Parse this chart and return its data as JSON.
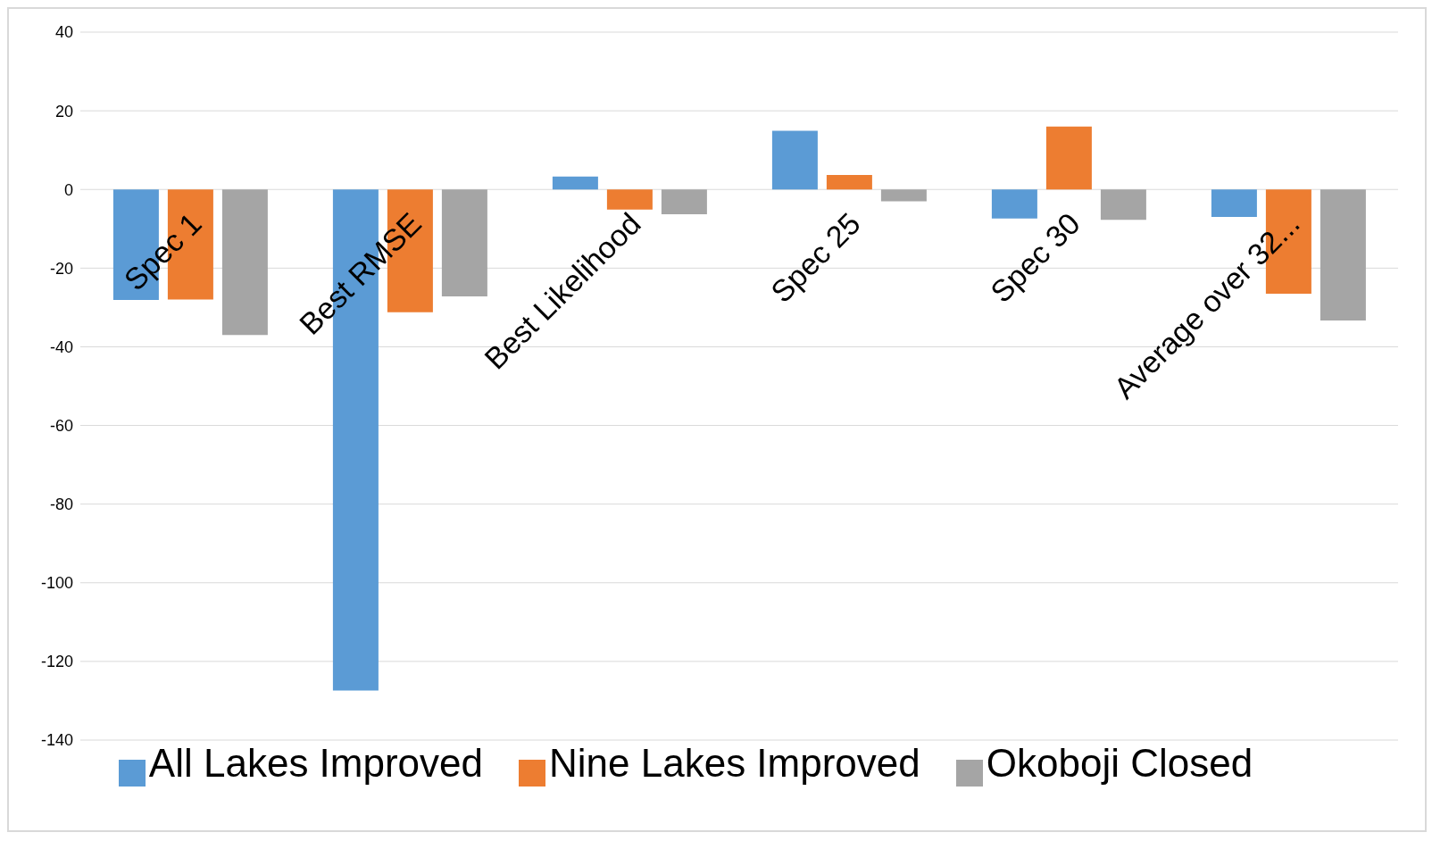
{
  "chart_data": {
    "type": "bar",
    "categories": [
      "Spec 1",
      "Best RMSE",
      "Best Likelihood",
      "Spec 25",
      "Spec 30",
      "Average over 32..."
    ],
    "series": [
      {
        "name": "All Lakes Improved",
        "color": "#5b9bd5",
        "values": [
          -28.1,
          -127.4,
          3.3,
          14.9,
          -7.4,
          -7
        ]
      },
      {
        "name": "Nine Lakes Improved",
        "color": "#ed7d31",
        "values": [
          -28,
          -31.2,
          -5.1,
          3.7,
          16,
          -26.5
        ]
      },
      {
        "name": "Okoboji Closed",
        "color": "#a5a5a5",
        "values": [
          -37,
          -27.2,
          -6.3,
          -3,
          -7.7,
          -33.3
        ]
      }
    ],
    "ylim": [
      -140,
      40
    ],
    "yticks": [
      -140,
      -120,
      -100,
      -80,
      -60,
      -40,
      -20,
      0,
      20,
      40
    ],
    "grid": "y",
    "legend": "bottom"
  }
}
